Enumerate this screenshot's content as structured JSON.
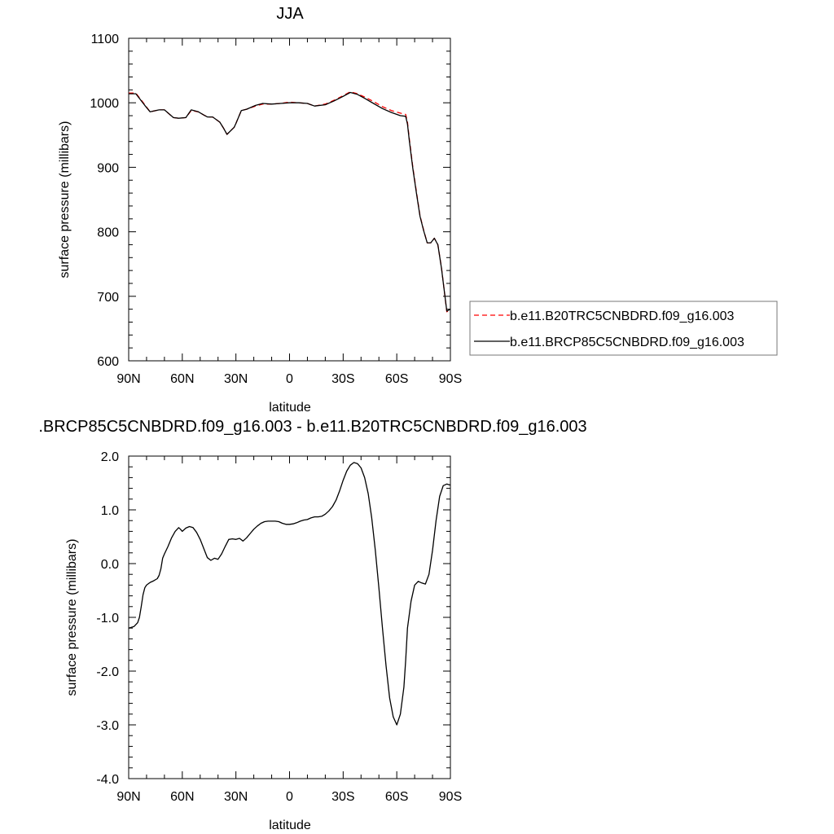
{
  "chart_data": [
    {
      "type": "line",
      "title": "JJA",
      "xlabel": "latitude",
      "ylabel": "surface pressure (millibars)",
      "xlim": [
        90,
        -90
      ],
      "ylim": [
        600,
        1100
      ],
      "xticks": [
        90,
        60,
        30,
        0,
        -30,
        -60,
        -90
      ],
      "xticklabels": [
        "90N",
        "60N",
        "30N",
        "0",
        "30S",
        "60S",
        "90S"
      ],
      "yticks": [
        600,
        700,
        800,
        900,
        1000,
        1100
      ],
      "yticklabels": [
        "600",
        "700",
        "800",
        "900",
        "1000",
        "1100"
      ],
      "grid": false,
      "legend_position": "right",
      "series": [
        {
          "name": "b.e11.B20TRC5CNBDRD.f09_g16.003",
          "color": "#ff0000",
          "style": "dashed",
          "x": [
            90,
            86,
            81,
            78,
            73,
            70,
            65,
            62,
            58,
            55,
            51,
            48,
            46,
            43,
            39,
            37,
            35,
            31,
            30,
            27,
            24,
            19,
            15,
            10,
            5,
            0,
            -5,
            -10,
            -14,
            -20,
            -25,
            -30,
            -34,
            -38,
            -42,
            -47,
            -52,
            -57,
            -62,
            -65,
            -66,
            -67,
            -69,
            -71,
            -73,
            -75,
            -77,
            -79,
            -81,
            -83,
            -85,
            -88,
            -90
          ],
          "y": [
            1015,
            1015,
            997,
            986,
            989,
            989,
            977,
            976,
            977,
            988,
            986,
            981,
            978,
            978,
            970,
            961,
            951,
            962,
            968,
            988,
            990,
            995,
            998,
            998,
            999,
            1001,
            1000,
            999,
            995,
            998,
            1004,
            1011,
            1017,
            1014,
            1009,
            1002,
            994,
            988,
            984,
            982,
            970,
            945,
            900,
            862,
            825,
            803,
            783,
            783,
            790,
            780,
            745,
            676,
            679
          ]
        },
        {
          "name": "b.e11.BRCP85C5CNBDRD.f09_g16.003",
          "color": "#000000",
          "style": "solid",
          "x": [
            90,
            86,
            81,
            78,
            73,
            70,
            65,
            62,
            58,
            55,
            51,
            48,
            46,
            43,
            39,
            37,
            35,
            31,
            30,
            27,
            24,
            19,
            15,
            10,
            5,
            0,
            -5,
            -10,
            -14,
            -20,
            -25,
            -30,
            -34,
            -38,
            -42,
            -47,
            -52,
            -57,
            -62,
            -65,
            -66,
            -67,
            -69,
            -71,
            -73,
            -75,
            -77,
            -79,
            -81,
            -83,
            -85,
            -88,
            -90
          ],
          "y": [
            1014,
            1014,
            996,
            986,
            989,
            989,
            977,
            976,
            977,
            989,
            986,
            981,
            978,
            978,
            970,
            961,
            951,
            962,
            968,
            988,
            990,
            996,
            999,
            998,
            999,
            1000,
            1000,
            999,
            995,
            997,
            1003,
            1010,
            1016,
            1013,
            1007,
            999,
            991,
            985,
            980,
            979,
            967,
            942,
            898,
            860,
            824,
            802,
            783,
            783,
            790,
            780,
            744,
            677,
            680
          ]
        }
      ]
    },
    {
      "type": "line",
      "title": ".BRCP85C5CNBDRD.f09_g16.003 - b.e11.B20TRC5CNBDRD.f09_g16.003",
      "xlabel": "latitude",
      "ylabel": "surface pressure (millibars)",
      "xlim": [
        90,
        -90
      ],
      "ylim": [
        -4.0,
        2.0
      ],
      "xticks": [
        90,
        60,
        30,
        0,
        -30,
        -60,
        -90
      ],
      "xticklabels": [
        "90N",
        "60N",
        "30N",
        "0",
        "30S",
        "60S",
        "90S"
      ],
      "yticks": [
        2.0,
        1.0,
        0.0,
        -1.0,
        -2.0,
        -3.0,
        -4.0
      ],
      "yticklabels": [
        "2.0",
        "1.0",
        "0.0",
        "-1.0",
        "-2.0",
        "-3.0",
        "-4.0"
      ],
      "grid": false,
      "series": [
        {
          "name": "",
          "color": "#000000",
          "style": "solid",
          "x": [
            90,
            87,
            85,
            84,
            83,
            82,
            81,
            80,
            78,
            76,
            74,
            73,
            72,
            71,
            70,
            68,
            66,
            64,
            62,
            61,
            60,
            58,
            56,
            54,
            52,
            50,
            48,
            46,
            44,
            42,
            40,
            38,
            36,
            34,
            32,
            30,
            28,
            26,
            24,
            22,
            20,
            18,
            16,
            14,
            12,
            10,
            8,
            6,
            4,
            2,
            0,
            -2,
            -4,
            -6,
            -8,
            -10,
            -12,
            -14,
            -16,
            -18,
            -20,
            -22,
            -24,
            -26,
            -28,
            -30,
            -32,
            -34,
            -36,
            -38,
            -40,
            -42,
            -44,
            -46,
            -48,
            -50,
            -52,
            -54,
            -56,
            -58,
            -60,
            -62,
            -64,
            -65,
            -66,
            -68,
            -70,
            -72,
            -74,
            -76,
            -78,
            -80,
            -82,
            -84,
            -86,
            -88,
            -89,
            -90
          ],
          "y": [
            -1.2,
            -1.17,
            -1.1,
            -1.0,
            -0.8,
            -0.58,
            -0.45,
            -0.4,
            -0.35,
            -0.32,
            -0.28,
            -0.22,
            -0.1,
            0.1,
            0.18,
            0.32,
            0.48,
            0.6,
            0.67,
            0.64,
            0.6,
            0.66,
            0.69,
            0.67,
            0.58,
            0.45,
            0.28,
            0.11,
            0.06,
            0.1,
            0.08,
            0.18,
            0.32,
            0.45,
            0.46,
            0.45,
            0.47,
            0.42,
            0.48,
            0.56,
            0.64,
            0.7,
            0.75,
            0.78,
            0.79,
            0.79,
            0.79,
            0.78,
            0.75,
            0.73,
            0.73,
            0.74,
            0.76,
            0.79,
            0.81,
            0.82,
            0.85,
            0.87,
            0.87,
            0.88,
            0.92,
            0.98,
            1.06,
            1.18,
            1.35,
            1.55,
            1.72,
            1.83,
            1.88,
            1.86,
            1.78,
            1.6,
            1.3,
            0.85,
            0.25,
            -0.45,
            -1.2,
            -1.9,
            -2.5,
            -2.85,
            -3.0,
            -2.8,
            -2.3,
            -1.8,
            -1.2,
            -0.7,
            -0.4,
            -0.33,
            -0.36,
            -0.38,
            -0.2,
            0.25,
            0.8,
            1.25,
            1.45,
            1.48,
            1.47,
            1.46
          ]
        }
      ]
    }
  ]
}
